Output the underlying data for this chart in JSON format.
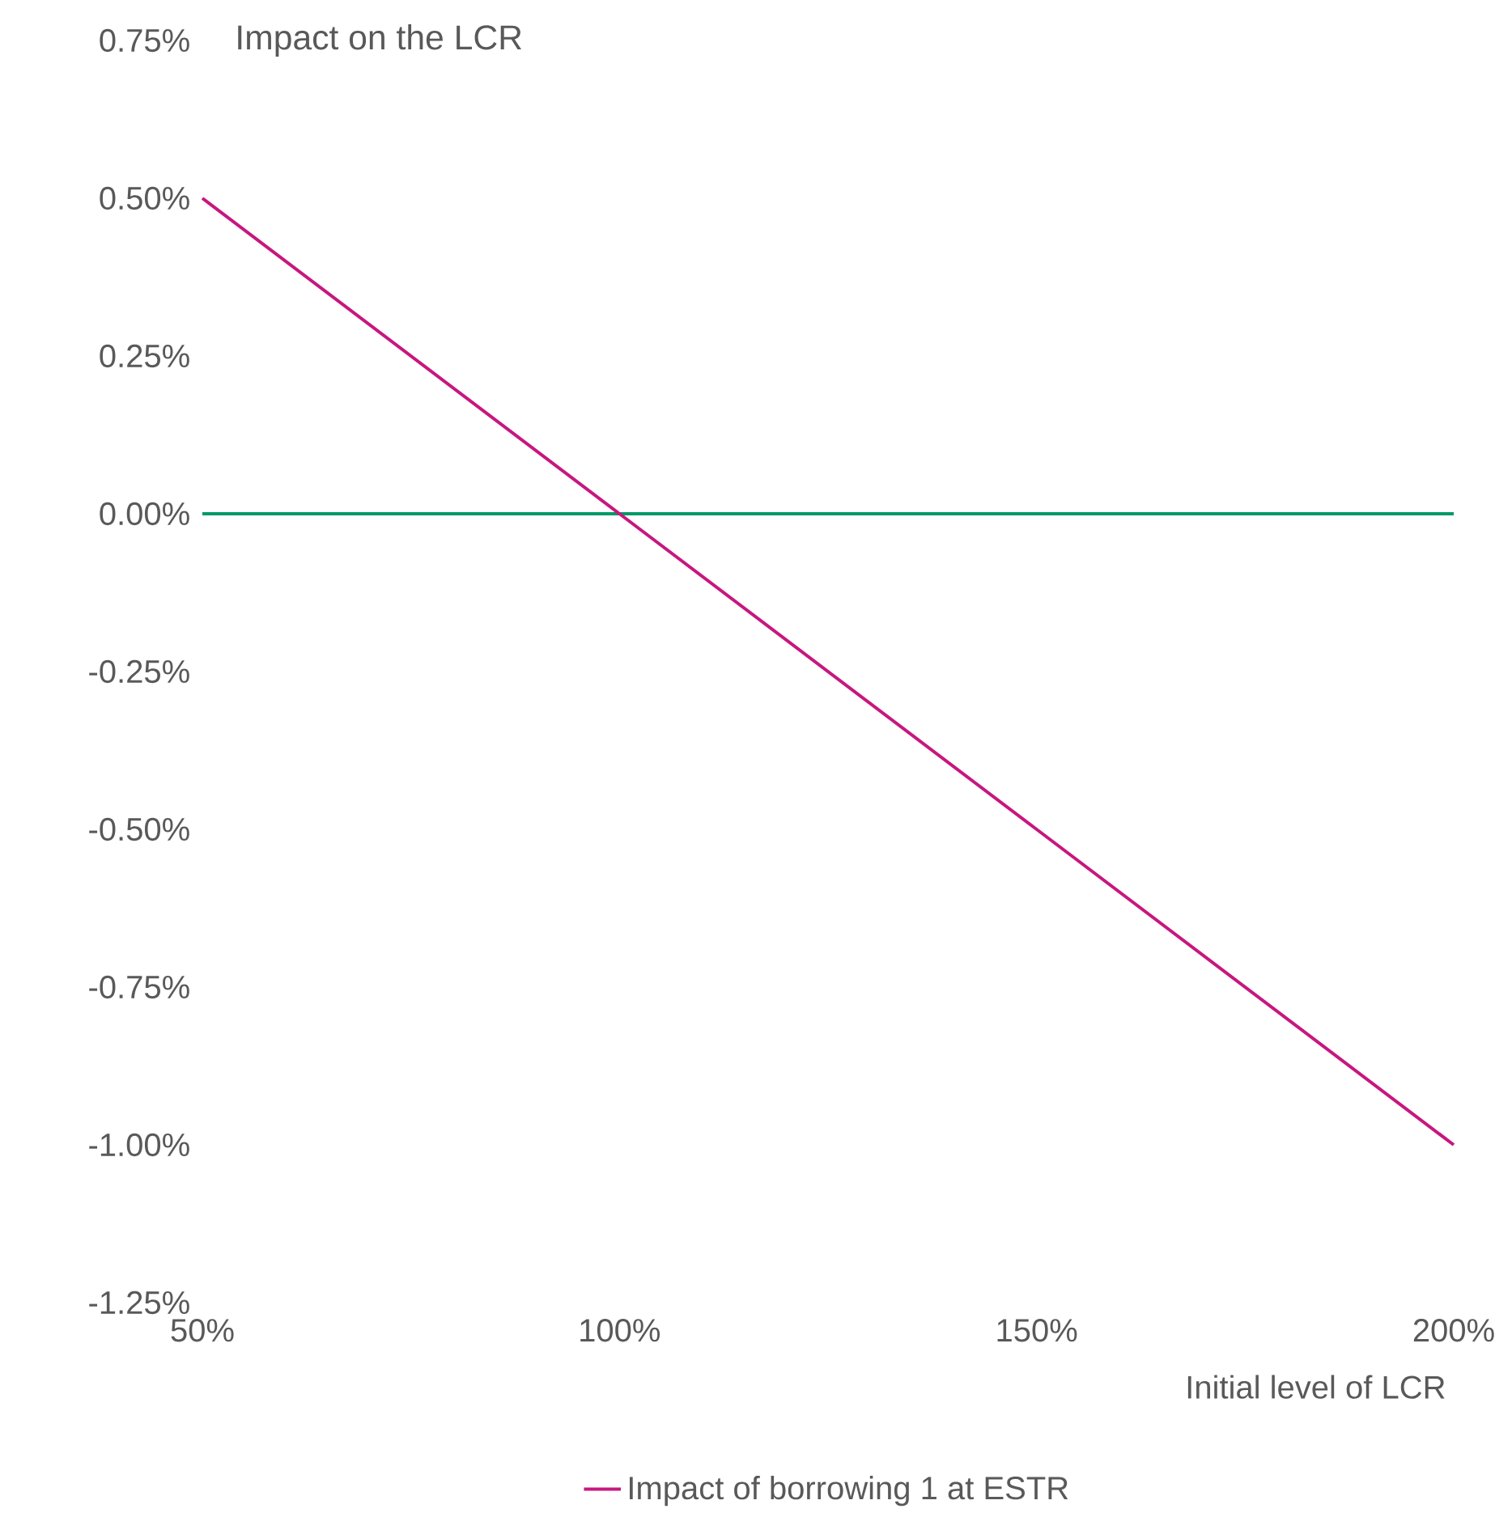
{
  "chart_data": {
    "type": "line",
    "ylabel": "Impact on the LCR",
    "xlabel": "Initial level of LCR",
    "x": [
      50,
      100,
      150,
      200
    ],
    "series": [
      {
        "name": "Impact of borrowing 1 at ESTR",
        "color": "#c7177f",
        "values": [
          0.5,
          0.0,
          -0.5,
          -1.0
        ]
      }
    ],
    "xlim": [
      50,
      200
    ],
    "xticks": [
      {
        "value": 50,
        "label": "50%"
      },
      {
        "value": 100,
        "label": "100%"
      },
      {
        "value": 150,
        "label": "150%"
      },
      {
        "value": 200,
        "label": "200%"
      }
    ],
    "ylim": [
      -1.25,
      0.75
    ],
    "yticks": [
      {
        "value": -1.25,
        "label": "-1.25%"
      },
      {
        "value": -1.0,
        "label": "-1.00%"
      },
      {
        "value": -0.75,
        "label": "-0.75%"
      },
      {
        "value": -0.5,
        "label": "-0.50%"
      },
      {
        "value": -0.25,
        "label": "-0.25%"
      },
      {
        "value": 0,
        "label": "0.00%"
      },
      {
        "value": 0.25,
        "label": "0.25%"
      },
      {
        "value": 0.5,
        "label": "0.50%"
      },
      {
        "value": 0.75,
        "label": "0.75%"
      }
    ],
    "ref_lines": [
      {
        "axis": "y",
        "value": 0,
        "color": "#009966"
      }
    ],
    "legend": "bottom",
    "grid": false,
    "marker": "none",
    "line_style": "solid"
  }
}
